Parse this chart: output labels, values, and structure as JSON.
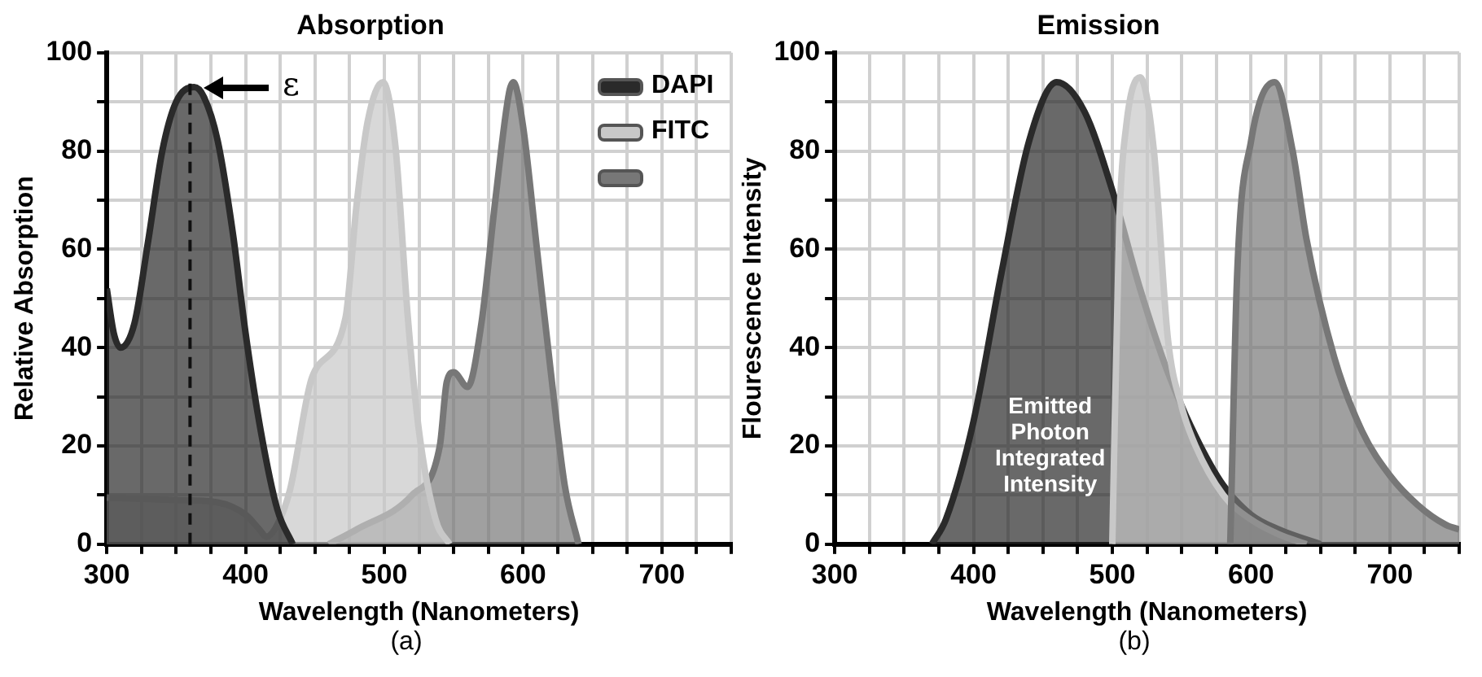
{
  "chart_data": [
    {
      "type": "area",
      "title": "Absorption",
      "xlabel": "Wavelength (Nanometers)",
      "ylabel": "Relative Absorption",
      "xlim": [
        300,
        750
      ],
      "xticks": [
        300,
        {
          "value": 325,
          "label": null
        },
        {
          "value": 350,
          "label": null
        },
        {
          "value": 375,
          "label": null
        },
        400,
        {
          "value": 425,
          "label": null
        },
        {
          "value": 450,
          "label": null
        },
        {
          "value": 475,
          "label": null
        },
        500,
        {
          "value": 525,
          "label": null
        },
        {
          "value": 550,
          "label": null
        },
        {
          "value": 575,
          "label": null
        },
        600,
        {
          "value": 625,
          "label": null
        },
        {
          "value": 650,
          "label": null
        },
        {
          "value": 675,
          "label": null
        },
        700,
        {
          "value": 725,
          "label": null
        },
        {
          "value": 750,
          "label": null
        }
      ],
      "ylim": [
        0,
        100
      ],
      "yticks": [
        0,
        {
          "value": 10,
          "label": null
        },
        20,
        {
          "value": 30,
          "label": null
        },
        40,
        {
          "value": 50,
          "label": null
        },
        60,
        {
          "value": 70,
          "label": null
        },
        80,
        {
          "value": 90,
          "label": null
        },
        100
      ],
      "grid": true,
      "legend": "top right",
      "series": [
        {
          "name": "DAPI",
          "color": "#2a2a2a",
          "x": [
            300,
            305,
            310,
            320,
            330,
            340,
            350,
            363,
            370,
            380,
            391,
            400,
            411,
            423,
            434
          ],
          "values": [
            52,
            43,
            40,
            45,
            62,
            80,
            90,
            93,
            91,
            82,
            63,
            43,
            23,
            7,
            0
          ]
        },
        {
          "name": "FITC",
          "color": "#c8c8c8",
          "x": [
            300,
            350,
            380,
            400,
            410,
            415,
            423,
            432,
            448,
            472,
            480,
            488,
            499,
            508,
            517,
            525,
            537,
            547
          ],
          "values": [
            9.5,
            9,
            8.5,
            6,
            3,
            1.5,
            4,
            11,
            34,
            46,
            69,
            86,
            94,
            81,
            46,
            23,
            5,
            0
          ]
        },
        {
          "color": "#777777",
          "x": [
            460,
            480,
            520,
            540,
            545,
            550,
            560,
            570,
            580,
            590,
            593,
            600,
            610,
            620,
            630,
            640
          ],
          "values": [
            0,
            3,
            10,
            20,
            33,
            35,
            32,
            45,
            70,
            92,
            94,
            85,
            60,
            35,
            12,
            0
          ]
        }
      ],
      "ref_lines": [
        {
          "axis": "x",
          "value": 360,
          "line_style": "dashed",
          "color": "#111111"
        }
      ],
      "annotations": [
        {
          "text": "ε",
          "x": 360,
          "y": 93
        },
        "(a)"
      ]
    },
    {
      "type": "area",
      "title": "Emission",
      "xlabel": "Wavelength (Nanometers)",
      "ylabel": "Flourescence Intensity",
      "xlim": [
        300,
        750
      ],
      "xticks": [
        300,
        {
          "value": 325,
          "label": null
        },
        {
          "value": 350,
          "label": null
        },
        {
          "value": 375,
          "label": null
        },
        400,
        {
          "value": 425,
          "label": null
        },
        {
          "value": 450,
          "label": null
        },
        {
          "value": 475,
          "label": null
        },
        500,
        {
          "value": 525,
          "label": null
        },
        {
          "value": 550,
          "label": null
        },
        {
          "value": 575,
          "label": null
        },
        600,
        {
          "value": 625,
          "label": null
        },
        {
          "value": 650,
          "label": null
        },
        {
          "value": 675,
          "label": null
        },
        700,
        {
          "value": 725,
          "label": null
        },
        {
          "value": 750,
          "label": null
        }
      ],
      "ylim": [
        0,
        100
      ],
      "yticks": [
        0,
        {
          "value": 10,
          "label": null
        },
        20,
        {
          "value": 30,
          "label": null
        },
        40,
        {
          "value": 50,
          "label": null
        },
        60,
        {
          "value": 70,
          "label": null
        },
        80,
        {
          "value": 90,
          "label": null
        },
        100
      ],
      "grid": true,
      "series": [
        {
          "color": "#777777",
          "x": [
            585,
            590,
            600,
            617,
            630,
            640,
            660,
            680,
            700,
            720,
            740,
            750
          ],
          "values": [
            0,
            55,
            82,
            94,
            80,
            62,
            38,
            23,
            14,
            8,
            4,
            3
          ]
        },
        {
          "color": "#c8c8c8",
          "x": [
            500,
            505,
            510,
            520,
            530,
            540,
            550,
            560,
            580,
            600,
            620,
            640
          ],
          "values": [
            0,
            65,
            85,
            95,
            80,
            42,
            28,
            20,
            10,
            5,
            2,
            0
          ]
        },
        {
          "color": "#2a2a2a",
          "x": [
            370,
            380,
            400,
            420,
            440,
            460,
            480,
            500,
            520,
            540,
            560,
            580,
            600,
            620,
            650
          ],
          "values": [
            0,
            5,
            25,
            55,
            82,
            94,
            88,
            72,
            52,
            35,
            22,
            12,
            6,
            3,
            0
          ]
        }
      ],
      "annotations": [
        "Emitted Photon Integrated Intensity",
        "(b)"
      ]
    }
  ]
}
